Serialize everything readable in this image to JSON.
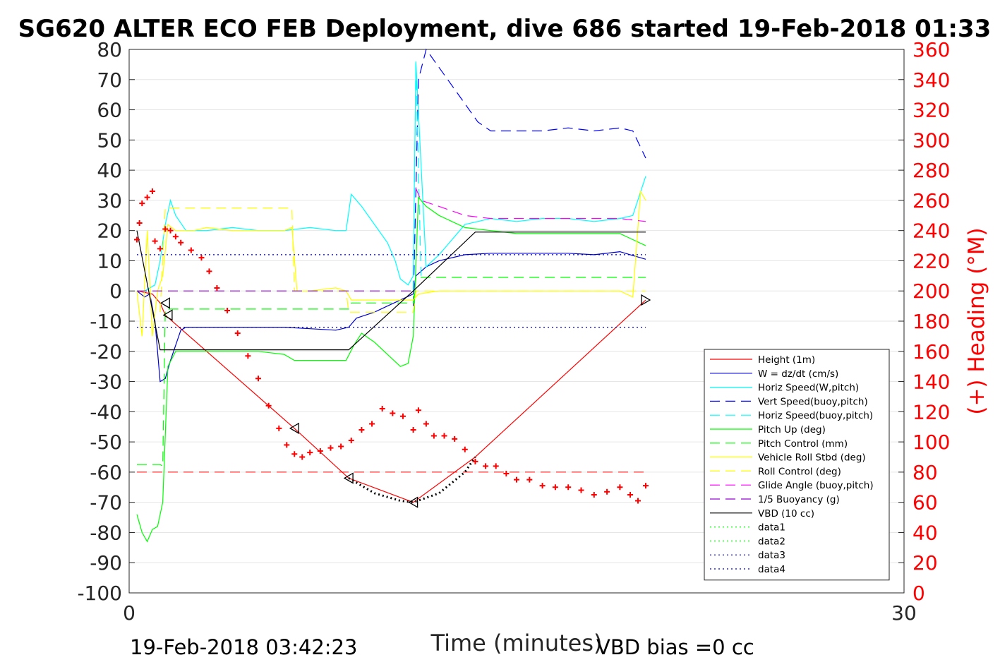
{
  "chart_data": {
    "type": "line",
    "title": "SG620 ALTER ECO FEB Deployment, dive 686 started 19-Feb-2018 01:33",
    "xlabel": "Time (minutes)",
    "ylabel_right": "(+) Heading (°M)",
    "xlim": [
      0,
      30
    ],
    "ylim_left": [
      -100,
      80
    ],
    "ylim_right": [
      0,
      360
    ],
    "x_ticks": [
      0,
      30
    ],
    "y_ticks_left": [
      80,
      70,
      60,
      50,
      40,
      30,
      20,
      10,
      0,
      -10,
      -20,
      -30,
      -40,
      -50,
      -60,
      -70,
      -80,
      -90,
      -100
    ],
    "y_ticks_right": [
      360,
      340,
      320,
      300,
      280,
      260,
      240,
      220,
      200,
      180,
      160,
      140,
      120,
      100,
      80,
      60,
      40,
      20,
      0
    ],
    "grid": "horizontal",
    "legend_position": "bottom-right",
    "footer_left": "19-Feb-2018 03:42:23",
    "footer_right": "VBD bias =0 cc",
    "series": [
      {
        "name": "Height (1m)",
        "color": "#ff0000",
        "style": "solid",
        "x": [
          0.3,
          0.9,
          1.2,
          1.4,
          6.4,
          8.5,
          11.0,
          13.4,
          20.0
        ],
        "y": [
          0,
          -1,
          -4,
          -8,
          -45.5,
          -62,
          -70,
          -55,
          -3
        ]
      },
      {
        "name": "W = dz/dt (cm/s)",
        "color": "#0000cc",
        "style": "solid",
        "x": [
          0.3,
          0.6,
          0.8,
          1.0,
          1.2,
          1.4,
          1.6,
          1.8,
          2.0,
          2.2,
          3,
          4,
          5,
          6,
          7,
          8,
          8.5,
          8.8,
          9.5,
          10,
          10.5,
          11.0,
          11.1,
          11.5,
          12,
          13,
          14,
          15,
          16,
          17,
          18,
          19,
          20.0
        ],
        "y": [
          0,
          -2,
          -1,
          -10,
          -30,
          -29,
          -23,
          -18,
          -13,
          -12,
          -12,
          -12,
          -12,
          -12,
          -12.5,
          -13,
          -12,
          -9,
          -7,
          -5,
          -3,
          -1,
          5,
          8,
          10,
          12,
          12.5,
          12.5,
          12.5,
          12.5,
          12,
          13,
          10.5
        ]
      },
      {
        "name": "Horiz Speed(W,pitch)",
        "color": "#00ffff",
        "style": "solid",
        "x": [
          0.3,
          0.6,
          1.0,
          1.2,
          1.4,
          1.6,
          1.8,
          2.2,
          3,
          4,
          5,
          6,
          7,
          8,
          8.4,
          8.6,
          9.0,
          9.5,
          10,
          10.3,
          10.5,
          10.8,
          11.0,
          11.1,
          11.5,
          12,
          13,
          14,
          15,
          16,
          17,
          18,
          19,
          19.5,
          20.0
        ],
        "y": [
          0,
          0,
          2,
          10,
          22,
          30,
          25,
          20,
          20,
          21,
          20,
          20,
          21,
          20,
          20,
          32,
          28,
          22,
          16,
          10,
          4,
          2,
          5,
          76,
          8,
          12,
          22,
          24,
          23,
          24,
          24,
          23,
          24,
          25,
          38
        ]
      },
      {
        "name": "Vert Speed(buoy,pitch)",
        "color": "#0000ff",
        "style": "dashed",
        "x": [
          11.0,
          11.2,
          11.5,
          12.0,
          12.5,
          13.0,
          13.5,
          14,
          15,
          16,
          17,
          18,
          19,
          19.5,
          20.0
        ],
        "y": [
          -5,
          70,
          80,
          74,
          68,
          62,
          56,
          53,
          53,
          53,
          54,
          53,
          54,
          53,
          44
        ]
      },
      {
        "name": "Horiz Speed(buoy,pitch)",
        "color": "#00ffff",
        "style": "dashed",
        "x": [
          11.0,
          11.1,
          11.3
        ],
        "y": [
          0,
          76,
          5
        ]
      },
      {
        "name": "Pitch Up (deg)",
        "color": "#00ff00",
        "style": "solid",
        "x": [
          0.3,
          0.5,
          0.7,
          0.9,
          1.1,
          1.3,
          1.5,
          1.8,
          2.2,
          3,
          4,
          5,
          6,
          6.4,
          7,
          8,
          8.4,
          8.7,
          9.0,
          9.5,
          10,
          10.5,
          10.8,
          11.0,
          11.2,
          11.5,
          12,
          13,
          14,
          15,
          16,
          17,
          18,
          19,
          20.0
        ],
        "y": [
          -74,
          -80,
          -83,
          -79,
          -78,
          -70,
          -25,
          -20,
          -20,
          -20,
          -20,
          -20,
          -21,
          -23,
          -23,
          -23,
          -23,
          -18,
          -14,
          -17,
          -21,
          -25,
          -24,
          -15,
          31,
          28,
          25,
          21,
          20,
          19,
          19,
          19,
          19,
          19,
          15
        ]
      },
      {
        "name": "Pitch Control (mm)",
        "color": "#00ff00",
        "style": "dashed",
        "x": [
          0.3,
          0.8,
          1.2,
          1.3,
          1.4,
          8.5,
          8.6,
          11.0,
          11.1,
          20.0
        ],
        "y": [
          -57.5,
          -57.5,
          -57.5,
          -58,
          -6,
          -6,
          -4,
          -4,
          4.5,
          4.5
        ]
      },
      {
        "name": "Vehicle Roll Stbd (deg)",
        "color": "#ffff00",
        "style": "solid",
        "x": [
          0.3,
          0.5,
          0.7,
          0.9,
          1.1,
          1.3,
          1.5,
          1.8,
          2.5,
          3,
          4,
          5,
          6,
          6.3,
          6.5,
          7,
          8,
          8.4,
          8.6,
          9,
          10,
          11.0,
          11.2,
          12,
          13,
          14,
          15,
          16,
          17,
          18,
          19,
          19.5,
          19.8,
          20.0
        ],
        "y": [
          0,
          -15,
          20,
          -15,
          0,
          5,
          22,
          20,
          20,
          21,
          20,
          20,
          20,
          21,
          0,
          0,
          1,
          0,
          -3,
          -3,
          -3,
          -3,
          -1,
          0,
          0,
          0,
          0,
          0,
          0,
          0,
          0,
          -2,
          33,
          30
        ]
      },
      {
        "name": "Roll Control (deg)",
        "color": "#ffff00",
        "style": "dashed",
        "x": [
          1.2,
          1.4,
          6.3,
          6.4,
          8.4,
          8.5,
          11.0,
          11.1,
          20.0
        ],
        "y": [
          -7,
          27.5,
          27.5,
          0,
          0,
          -7,
          -7,
          0,
          0
        ]
      },
      {
        "name": "Glide Angle (buoy,pitch)",
        "color": "#ff00ff",
        "style": "dashed",
        "x": [
          11.1,
          11.3,
          12,
          13,
          14,
          15,
          16,
          17,
          18,
          19,
          20.0
        ],
        "y": [
          34,
          30,
          28,
          25,
          24,
          24,
          24,
          24,
          24,
          24,
          23
        ]
      },
      {
        "name": "1/5 Buoyancy (g)",
        "color": "#9400d3",
        "style": "dashed",
        "x": [
          0.3,
          11.0
        ],
        "y": [
          0,
          0
        ]
      },
      {
        "name": "VBD (10 cc)",
        "color": "#000000",
        "style": "solid",
        "x": [
          0.3,
          1.2,
          8.5,
          11.0,
          13.4,
          20.0
        ],
        "y": [
          20,
          -19.5,
          -19.5,
          0,
          19.5,
          19.5
        ]
      },
      {
        "name": "data1",
        "color": "#00ff00",
        "style": "dotted",
        "x": [],
        "y": []
      },
      {
        "name": "data2",
        "color": "#00ff00",
        "style": "dotted",
        "x": [],
        "y": []
      },
      {
        "name": "data3",
        "color": "#0000aa",
        "style": "dotted",
        "x": [
          0.3,
          20.0
        ],
        "y": [
          12,
          12
        ]
      },
      {
        "name": "data4",
        "color": "#0000aa",
        "style": "dotted",
        "x": [
          0.3,
          20.0
        ],
        "y": [
          -12,
          -12
        ]
      }
    ],
    "reference_lines": [
      {
        "axis": "right",
        "y": 80,
        "color": "#ff0000",
        "style": "dashed",
        "x": [
          0.3,
          20.0
        ]
      }
    ],
    "heading_points": {
      "axis": "right",
      "color": "#ff0000",
      "marker": "+",
      "x": [
        0.3,
        0.4,
        0.5,
        0.7,
        0.9,
        1.0,
        1.2,
        1.4,
        1.6,
        1.8,
        2.0,
        2.4,
        2.8,
        3.1,
        3.4,
        3.8,
        4.2,
        4.6,
        5.0,
        5.4,
        5.8,
        6.1,
        6.4,
        6.7,
        7.0,
        7.4,
        7.8,
        8.2,
        8.6,
        9.0,
        9.4,
        9.8,
        10.2,
        10.6,
        11.0,
        11.2,
        11.5,
        11.8,
        12.2,
        12.6,
        13.0,
        13.4,
        13.8,
        14.2,
        14.6,
        15.0,
        15.5,
        16.0,
        16.5,
        17.0,
        17.5,
        18.0,
        18.5,
        19.0,
        19.4,
        19.7,
        20.0
      ],
      "y": [
        234,
        245,
        258,
        262,
        266,
        233,
        228,
        241,
        240,
        236,
        232,
        227,
        222,
        213,
        202,
        187,
        172,
        157,
        142,
        124,
        109,
        98,
        92,
        90,
        93,
        94,
        96,
        97,
        101,
        108,
        112,
        122,
        119,
        117,
        108,
        121,
        112,
        104,
        104,
        102,
        95,
        87,
        84,
        84,
        79,
        75,
        75,
        71,
        70,
        70,
        68,
        65,
        67,
        70,
        65,
        61,
        71
      ]
    },
    "markers": {
      "left_triangles": [
        [
          1.4,
          -4
        ],
        [
          1.5,
          -8
        ],
        [
          6.4,
          -45.5
        ],
        [
          8.5,
          -62
        ],
        [
          11.0,
          -70
        ]
      ],
      "right_triangles": [
        [
          20.0,
          -3
        ]
      ],
      "dotted_curve_x": [
        8.5,
        9.5,
        10.5,
        11.0,
        12.0,
        13.0,
        13.4
      ],
      "dotted_curve_y": [
        -62,
        -67,
        -69.5,
        -70,
        -67,
        -60,
        -55
      ]
    }
  }
}
